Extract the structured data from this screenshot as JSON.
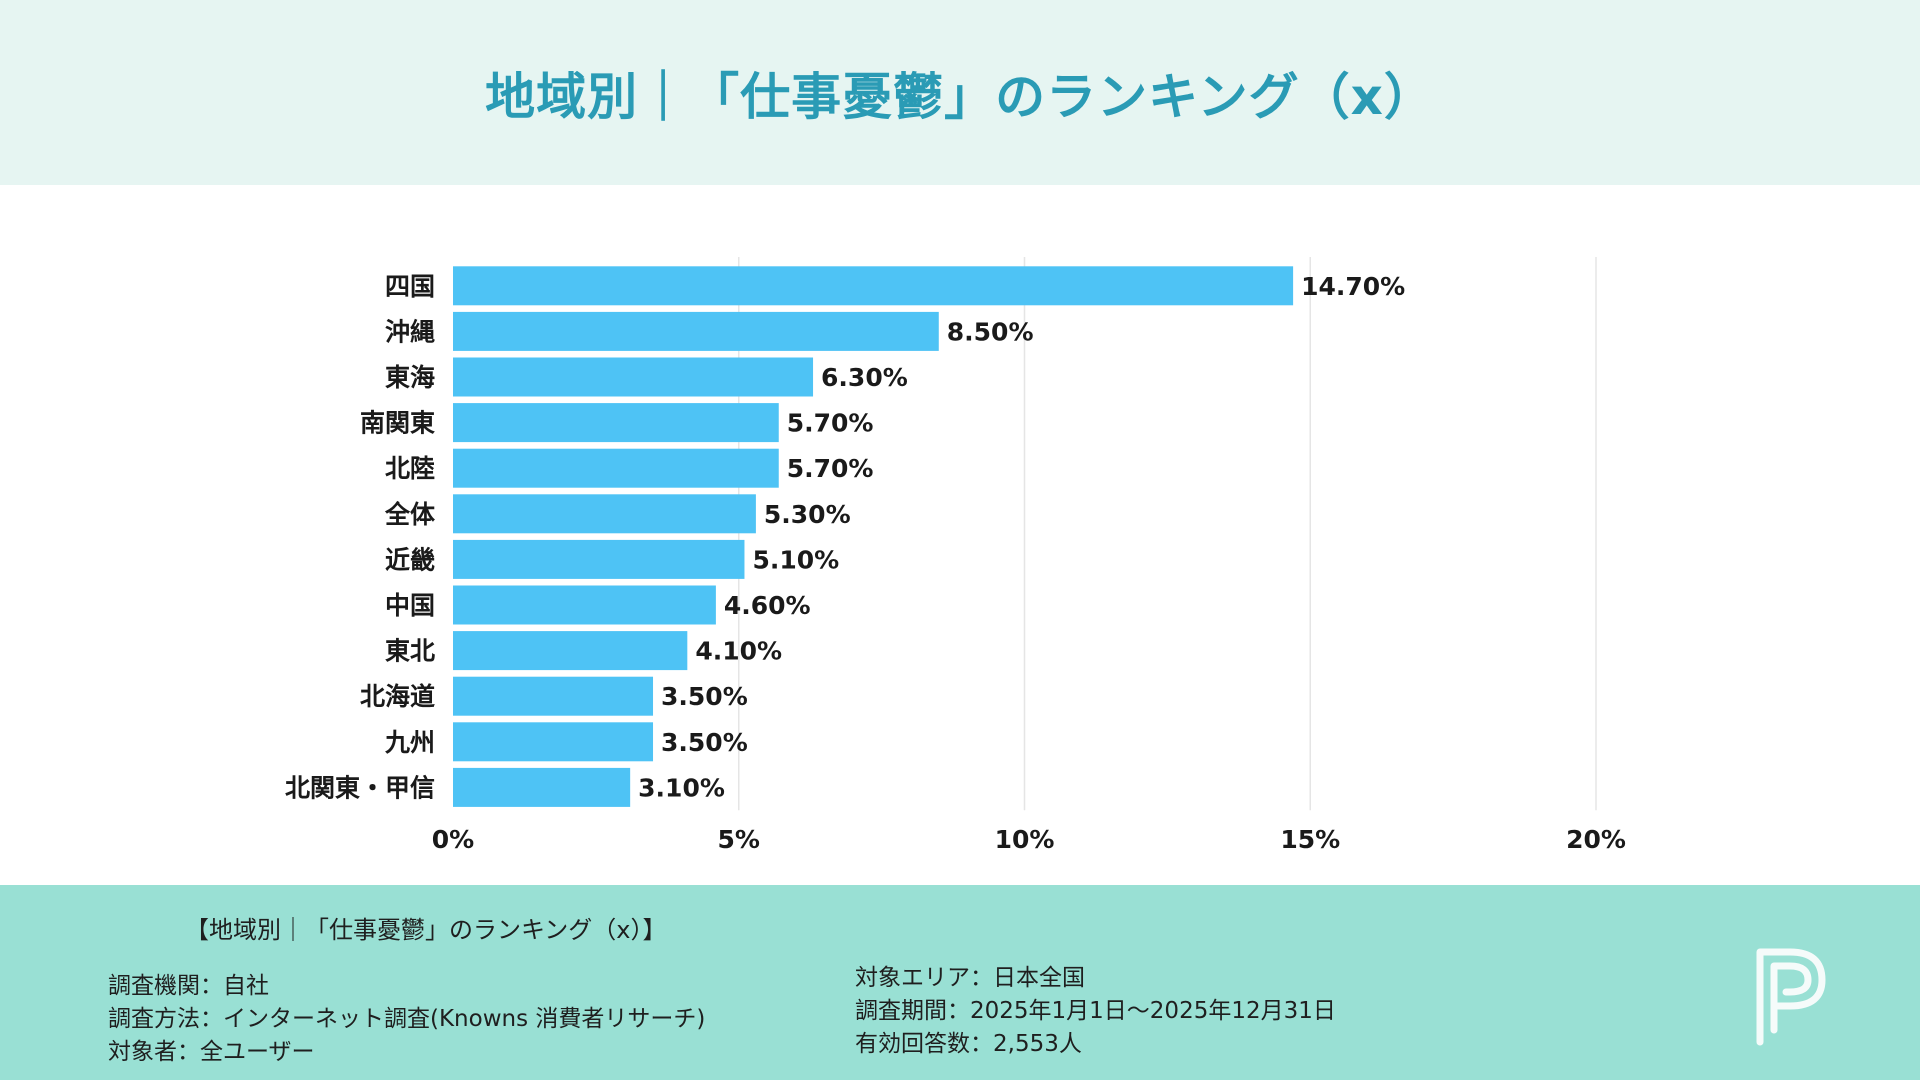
{
  "header": {
    "title": "地域別｜「仕事憂鬱」のランキング（x）"
  },
  "chart_data": {
    "type": "bar",
    "orientation": "horizontal",
    "title": "地域別｜「仕事憂鬱」のランキング（x）",
    "categories": [
      "四国",
      "沖縄",
      "東海",
      "南関東",
      "北陸",
      "全体",
      "近畿",
      "中国",
      "東北",
      "北海道",
      "九州",
      "北関東・甲信"
    ],
    "values": [
      14.7,
      8.5,
      6.3,
      5.7,
      5.7,
      5.3,
      5.1,
      4.6,
      4.1,
      3.5,
      3.5,
      3.1
    ],
    "value_labels": [
      "14.70%",
      "8.50%",
      "6.30%",
      "5.70%",
      "5.70%",
      "5.30%",
      "5.10%",
      "4.60%",
      "4.10%",
      "3.50%",
      "3.50%",
      "3.10%"
    ],
    "xlim": [
      0,
      20
    ],
    "xticks": [
      0,
      5,
      10,
      15,
      20
    ],
    "xtick_labels": [
      "0%",
      "5%",
      "10%",
      "15%",
      "20%"
    ],
    "grid": true,
    "bar_color": "#4ec3f5"
  },
  "footer": {
    "title": "【地域別｜「仕事憂鬱」のランキング（x）】",
    "left_lines": [
      "調査機関：自社",
      "調査方法：インターネット調査(Knowns 消費者リサーチ)",
      "対象者：全ユーザー"
    ],
    "right_lines": [
      "対象エリア：日本全国",
      "調査期間：2025年1月1日～2025年12月31日",
      "有効回答数：2,553人"
    ]
  },
  "colors": {
    "header_bg": "#e6f5f2",
    "title": "#2a9bb5",
    "footer_bg": "#99e0d4",
    "grid": "#e5e5e5",
    "bar": "#4ec3f5"
  },
  "logo_icon": "p-logo-icon"
}
